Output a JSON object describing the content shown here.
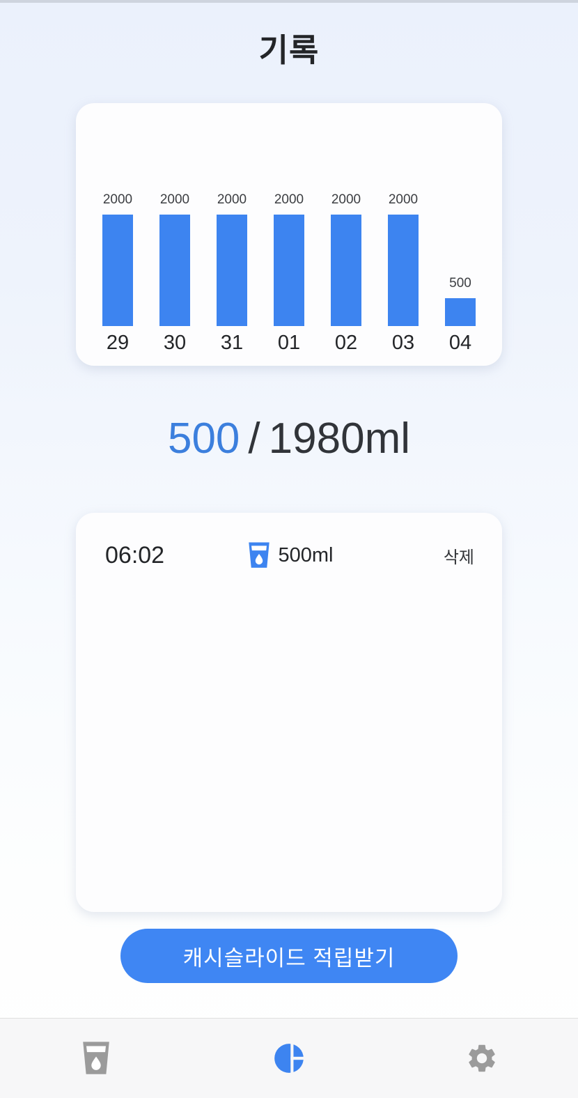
{
  "app": {
    "title": "기록"
  },
  "chart_data": {
    "type": "bar",
    "categories": [
      "29",
      "30",
      "31",
      "01",
      "02",
      "03",
      "04"
    ],
    "values": [
      2000,
      2000,
      2000,
      2000,
      2000,
      2000,
      500
    ],
    "title": "",
    "xlabel": "",
    "ylabel": "",
    "ylim": [
      0,
      2000
    ],
    "grid": false,
    "legend": "none",
    "bar_color": "#3d84f0",
    "value_labels_shown": true
  },
  "summary": {
    "current": "500",
    "separator": "/",
    "total": "1980ml"
  },
  "records": [
    {
      "time": "06:02",
      "amount": "500ml",
      "delete_label": "삭제",
      "icon": "water-cup-icon"
    }
  ],
  "ad_button": {
    "label": "캐시슬라이드 적립받기"
  },
  "nav": {
    "items": [
      {
        "icon": "water-cup-icon",
        "active": false
      },
      {
        "icon": "stats-pie-icon",
        "active": true
      },
      {
        "icon": "settings-gear-icon",
        "active": false
      }
    ]
  },
  "colors": {
    "accent": "#3d84f0",
    "summary_current": "#3c7fdd",
    "button_bg": "#3f86f3",
    "text_dark": "#232528",
    "nav_inactive": "#9b9b9b",
    "card_bg": "#fdfdfe",
    "navbar_bg": "#f7f7f8"
  }
}
